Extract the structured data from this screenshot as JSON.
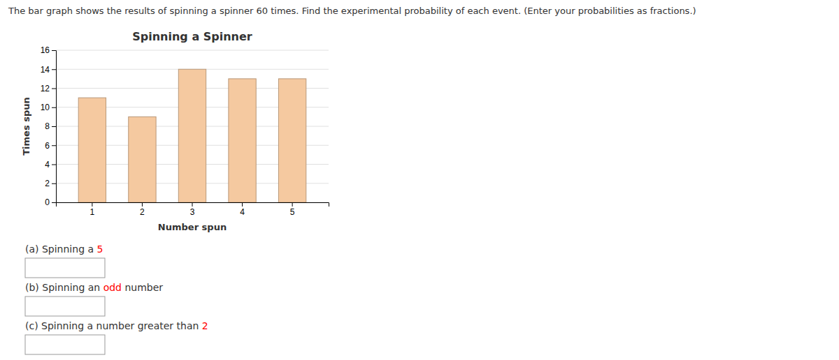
{
  "chart_data": {
    "type": "bar",
    "title": "Spinning a Spinner",
    "subtitle": "The bar graph shows the results of spinning a spinner 60 times. Find the experimental probability of each event. (Enter your probabilities as fractions.)",
    "x_label": "Number spun",
    "y_label": "Times spun",
    "categories": [
      1,
      2,
      3,
      4,
      5
    ],
    "values": [
      11,
      9,
      14,
      13,
      13
    ],
    "color": "#f5c9a0",
    "ylim": [
      0,
      16
    ],
    "yticks": [
      0,
      2,
      4,
      6,
      8,
      10,
      12,
      14,
      16
    ],
    "grid": true,
    "annotations": [
      {
        "parts": [
          {
            "text": "(a) Spinning a "
          },
          {
            "text": "5",
            "color": "#ff0000"
          }
        ]
      },
      {
        "parts": [
          {
            "text": "(b) Spinning an "
          },
          {
            "text": "odd",
            "color": "#ff0000"
          },
          {
            "text": " number"
          }
        ]
      },
      {
        "parts": [
          {
            "text": "(c) Spinning a number greater than "
          },
          {
            "text": "2",
            "color": "#ff0000"
          }
        ]
      }
    ]
  }
}
